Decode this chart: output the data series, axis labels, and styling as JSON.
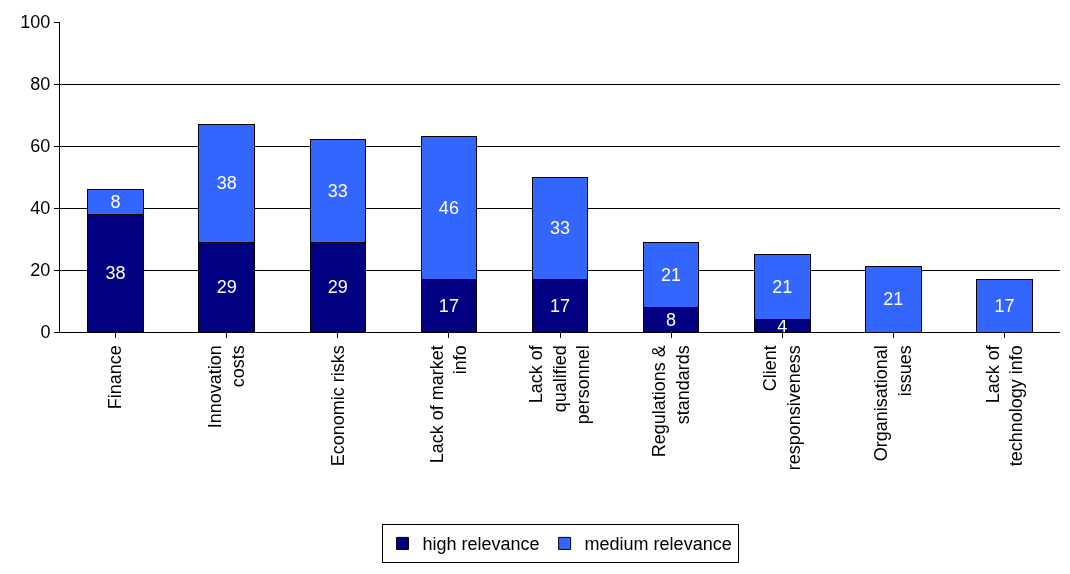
{
  "chart_data": {
    "type": "bar",
    "stacked": true,
    "categories": [
      "Finance",
      "Innovation costs",
      "Economic risks",
      "Lack of market info",
      "Lack of qualified personnel",
      "Regulations & standards",
      "Client responsiveness",
      "Organisational issues",
      "Lack of technology info"
    ],
    "series": [
      {
        "name": "high relevance",
        "color": "#000080",
        "values": [
          38,
          29,
          29,
          17,
          17,
          8,
          4,
          null,
          null
        ]
      },
      {
        "name": "medium relevance",
        "color": "#3366ff",
        "values": [
          8,
          38,
          33,
          46,
          33,
          21,
          21,
          21,
          17
        ]
      }
    ],
    "ylim": [
      0,
      100
    ],
    "yticks": [
      0,
      20,
      40,
      60,
      80,
      100
    ],
    "grid": "y",
    "legend": "bottom",
    "data_labels": true
  }
}
